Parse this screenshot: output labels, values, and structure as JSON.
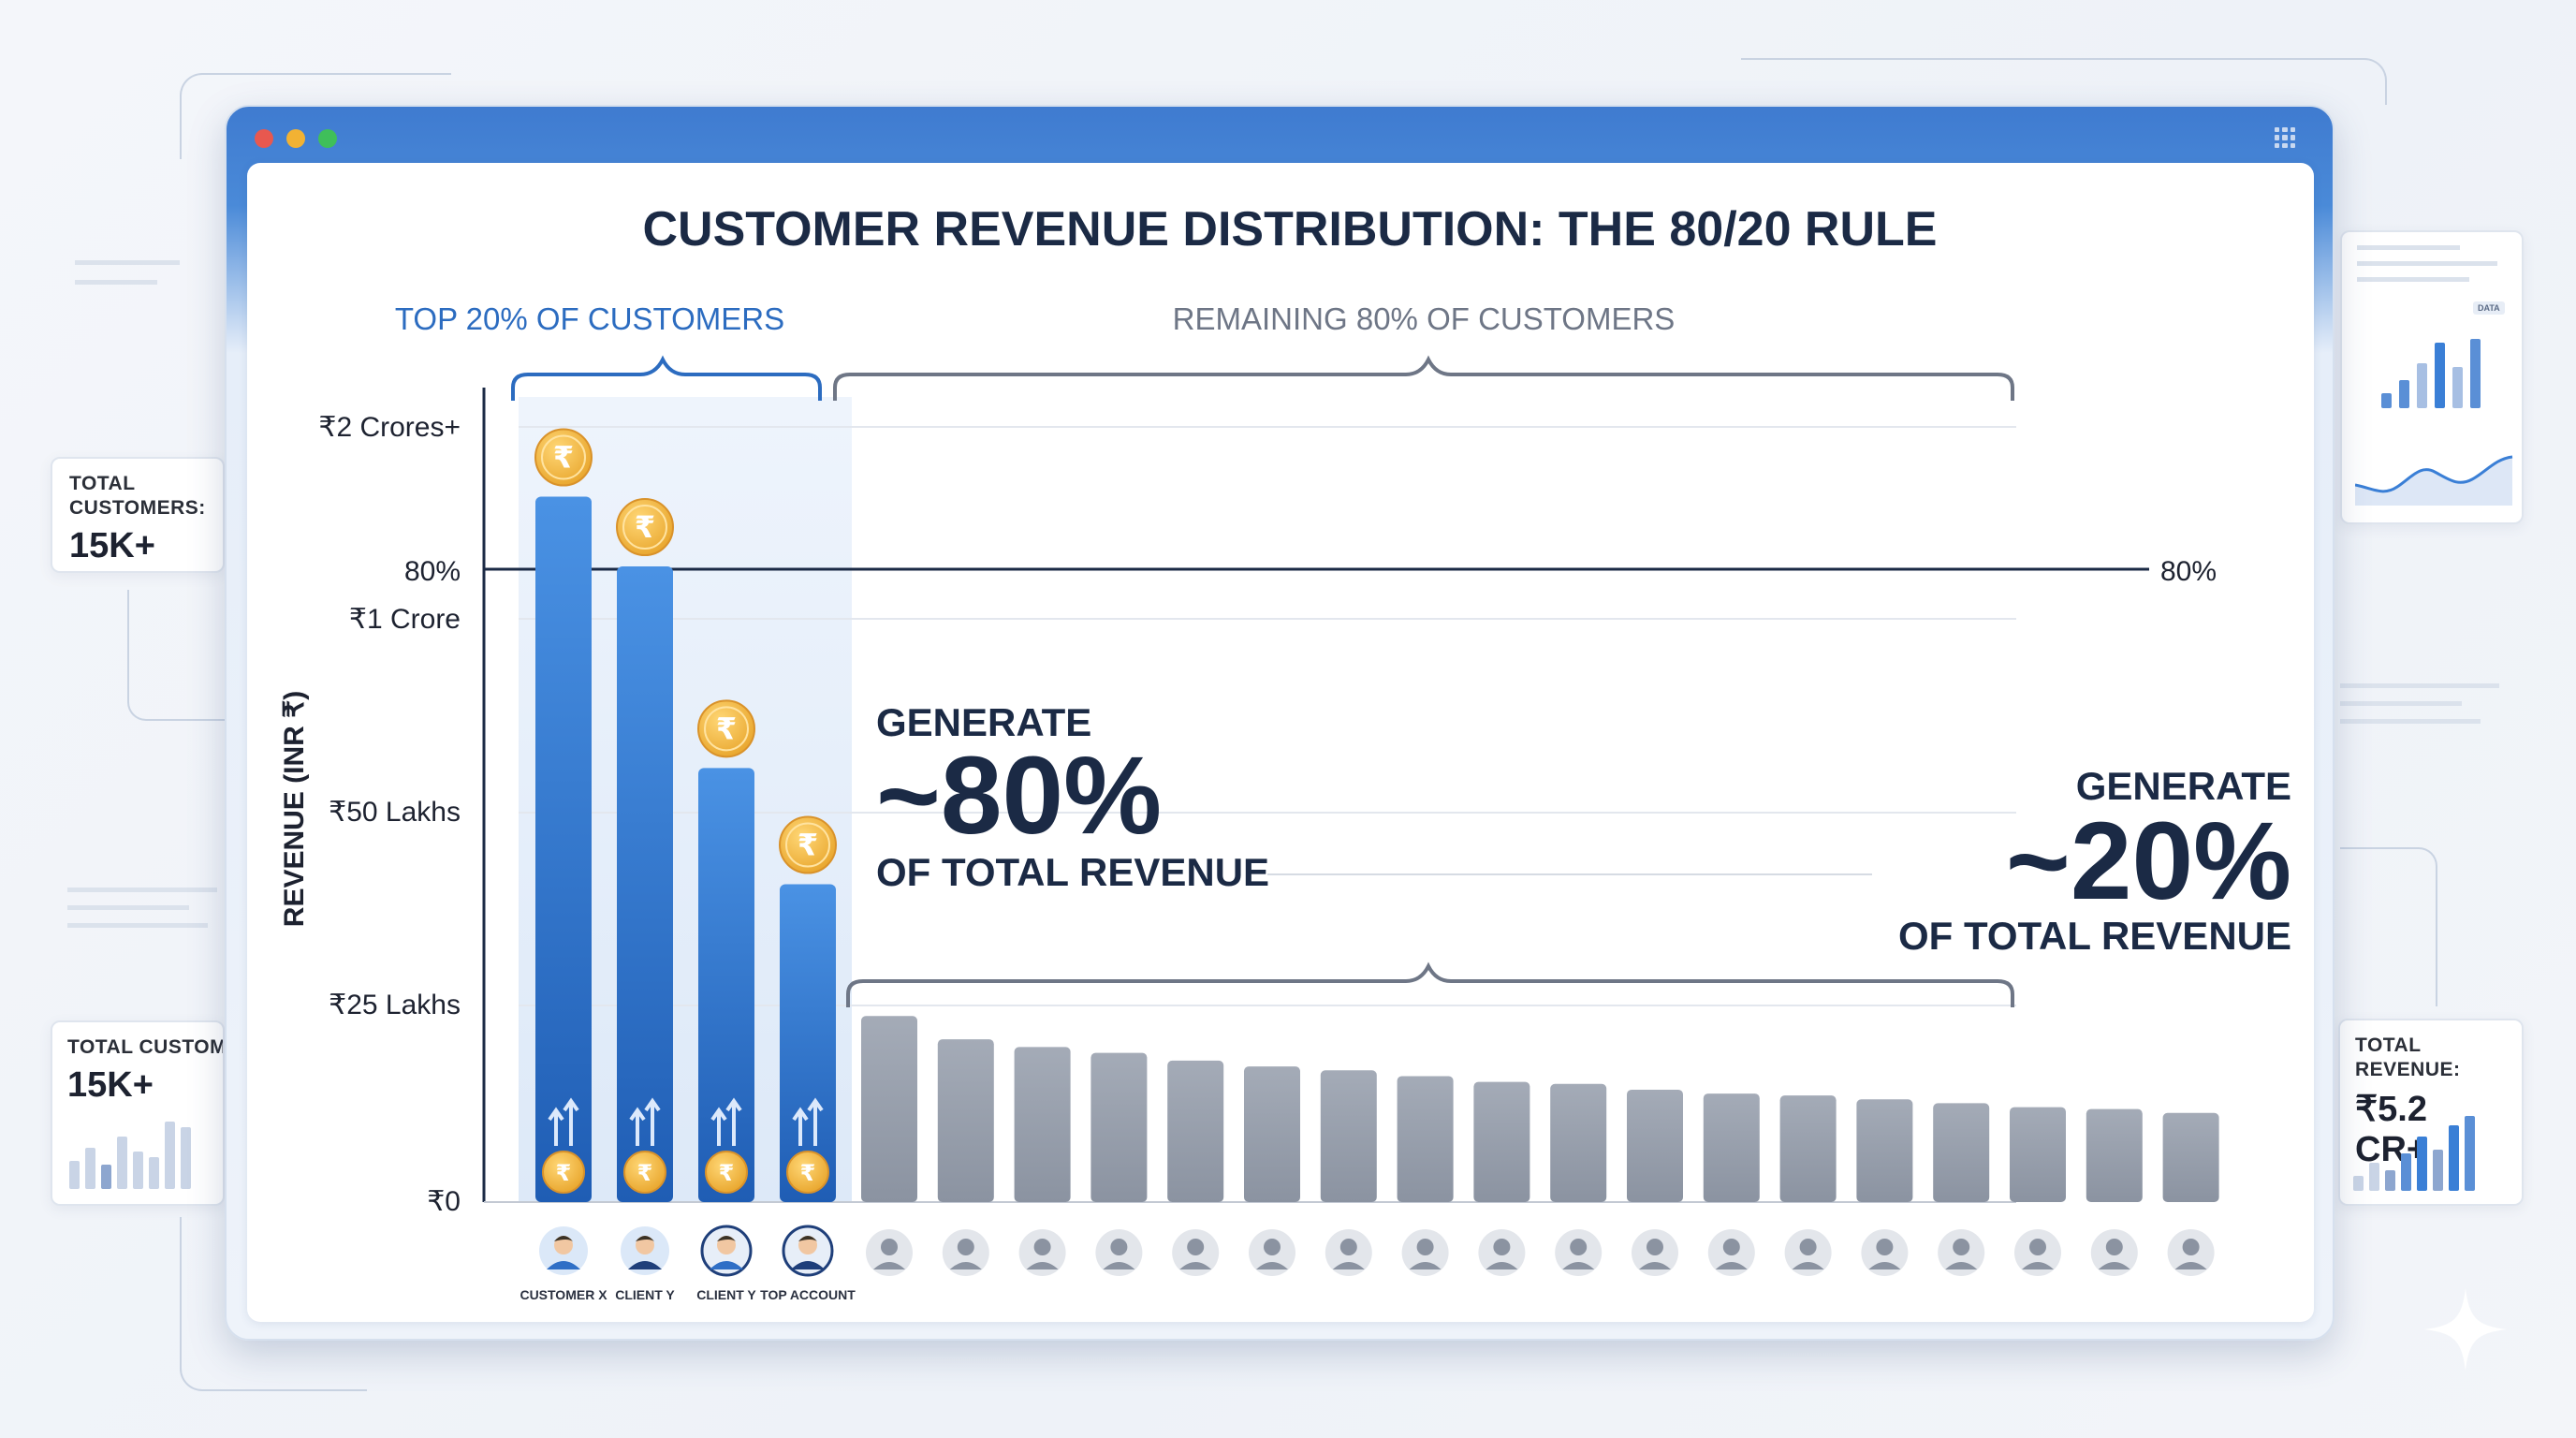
{
  "left_cards": [
    {
      "label_lines": [
        "TOTAL",
        "CUSTOMERS:"
      ],
      "value": "15K+"
    },
    {
      "label_lines": [
        "TOTAL CUSTOME"
      ],
      "value": "15K+"
    }
  ],
  "right_cards": [
    {
      "label_lines": [
        "TOTAL REVENUE:"
      ],
      "value": "₹5.2 CR+"
    }
  ],
  "mini_chart_badge": "DATA",
  "window": {
    "dot_colors": [
      "#e8584f",
      "#f2b233",
      "#3fbf5a"
    ]
  },
  "colors": {
    "top_bar": "#3a7fd6",
    "top_bar_dark": "#1f5db4",
    "other_bar": "#9aa1ad",
    "coin": "#f4b63f",
    "coin_symbol": "₹"
  },
  "chart_data": {
    "type": "bar",
    "title": "CUSTOMER REVENUE DISTRIBUTION: THE 80/20 RULE",
    "ylabel": "REVENUE (INR ₹)",
    "y_tick_labels": [
      "₹2 Crores+",
      "80%",
      "₹1 Crore",
      "₹50 Lakhs",
      "₹25 Lakhs",
      "₹0"
    ],
    "reference_line": {
      "label_left": "80%",
      "label_right": "80%"
    },
    "groups": [
      {
        "label": "TOP 20% OF CUSTOMERS",
        "color": "#2c6cc0"
      },
      {
        "label": "REMAINING 80% OF CUSTOMERS",
        "color": "#6e7686"
      }
    ],
    "top_callout": {
      "line1": "GENERATE",
      "big": "~80%",
      "line2": "OF TOTAL REVENUE"
    },
    "rest_callout": {
      "line1": "GENERATE",
      "big": "~20%",
      "line2": "OF TOTAL REVENUE"
    },
    "top_categories": [
      "CUSTOMER X",
      "CLIENT Y",
      "CLIENT Y",
      "TOP ACCOUNT"
    ],
    "top_values": [
      1.82,
      1.64,
      1.12,
      0.82
    ],
    "rest_values": [
      0.48,
      0.42,
      0.4,
      0.385,
      0.365,
      0.35,
      0.34,
      0.325,
      0.31,
      0.305,
      0.29,
      0.28,
      0.275,
      0.265,
      0.255,
      0.245,
      0.24,
      0.23
    ],
    "y_axis_map": [
      {
        "value": 0,
        "label_index": 5
      },
      {
        "value": 0.5,
        "label_index": 4
      },
      {
        "value": 1.0,
        "label_index": 3
      },
      {
        "value": 1.5,
        "label_index": 2
      },
      {
        "value": 2.0,
        "label_index": 0
      }
    ],
    "ylim": [
      0,
      2.0
    ]
  }
}
